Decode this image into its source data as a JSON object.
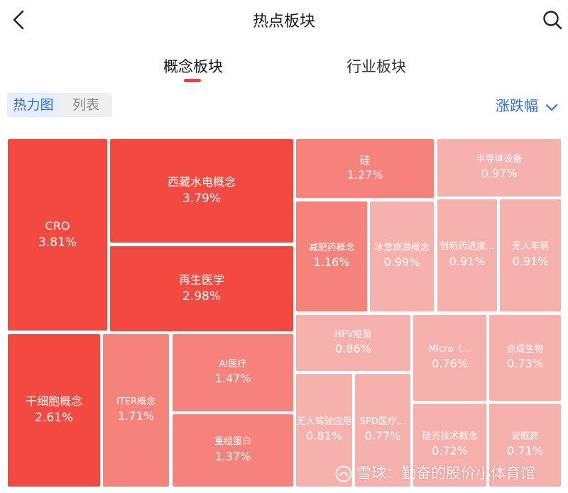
{
  "header": {
    "title": "热点板块",
    "back_icon": "chevron-left-icon",
    "search_icon": "search-icon"
  },
  "tabs": [
    {
      "label": "概念板块",
      "active": true
    },
    {
      "label": "行业板块",
      "active": false
    }
  ],
  "view_toggle": {
    "heatmap_label": "热力图",
    "list_label": "列表",
    "selected": "热力图"
  },
  "sort": {
    "label": "涨跌幅",
    "icon": "chevron-down-icon"
  },
  "colors": {
    "accent_blue": "#2f6fd6",
    "tab_underline": "#f23c3c",
    "heat_strong": "#f24a40",
    "heat_medium": "#f5837b",
    "heat_light": "#f6b1ac"
  },
  "heatmap": [
    {
      "name": "CRO",
      "change": "3.81%",
      "color": "#f24a40"
    },
    {
      "name": "西藏水电概念",
      "change": "3.79%",
      "color": "#f24a40"
    },
    {
      "name": "再生医学",
      "change": "2.98%",
      "color": "#f24a40"
    },
    {
      "name": "干细胞概念",
      "change": "2.61%",
      "color": "#f24a40"
    },
    {
      "name": "ITER概念",
      "change": "1.71%",
      "color": "#f5837b"
    },
    {
      "name": "AI医疗",
      "change": "1.47%",
      "color": "#f5837b"
    },
    {
      "name": "重组蛋白",
      "change": "1.37%",
      "color": "#f5837b"
    },
    {
      "name": "硅",
      "change": "1.27%",
      "color": "#f5837b"
    },
    {
      "name": "减肥药概念",
      "change": "1.16%",
      "color": "#f5837b"
    },
    {
      "name": "冰雪旅游概念",
      "change": "0.99%",
      "color": "#f6b1ac"
    },
    {
      "name": "半导体设备",
      "change": "0.97%",
      "color": "#f6b1ac"
    },
    {
      "name": "创新药进度...",
      "change": "0.91%",
      "color": "#f6b1ac"
    },
    {
      "name": "无人车辆",
      "change": "0.91%",
      "color": "#f6b1ac"
    },
    {
      "name": "HPV疫苗",
      "change": "0.86%",
      "color": "#f6b1ac"
    },
    {
      "name": "Micro（...",
      "change": "0.76%",
      "color": "#f6b1ac"
    },
    {
      "name": "合成生物",
      "change": "0.73%",
      "color": "#f6b1ac"
    },
    {
      "name": "无人驾驶应用",
      "change": "0.81%",
      "color": "#f6b1ac"
    },
    {
      "name": "SPD医疗...",
      "change": "0.77%",
      "color": "#f6b1ac"
    },
    {
      "name": "硅光技术概念",
      "change": "0.72%",
      "color": "#f6b1ac"
    },
    {
      "name": "安眠药",
      "change": "0.71%",
      "color": "#f6b1ac"
    }
  ],
  "watermark": {
    "text": "雪球：勤奋的股价小体育馆",
    "icon": "snowball-logo-icon"
  }
}
